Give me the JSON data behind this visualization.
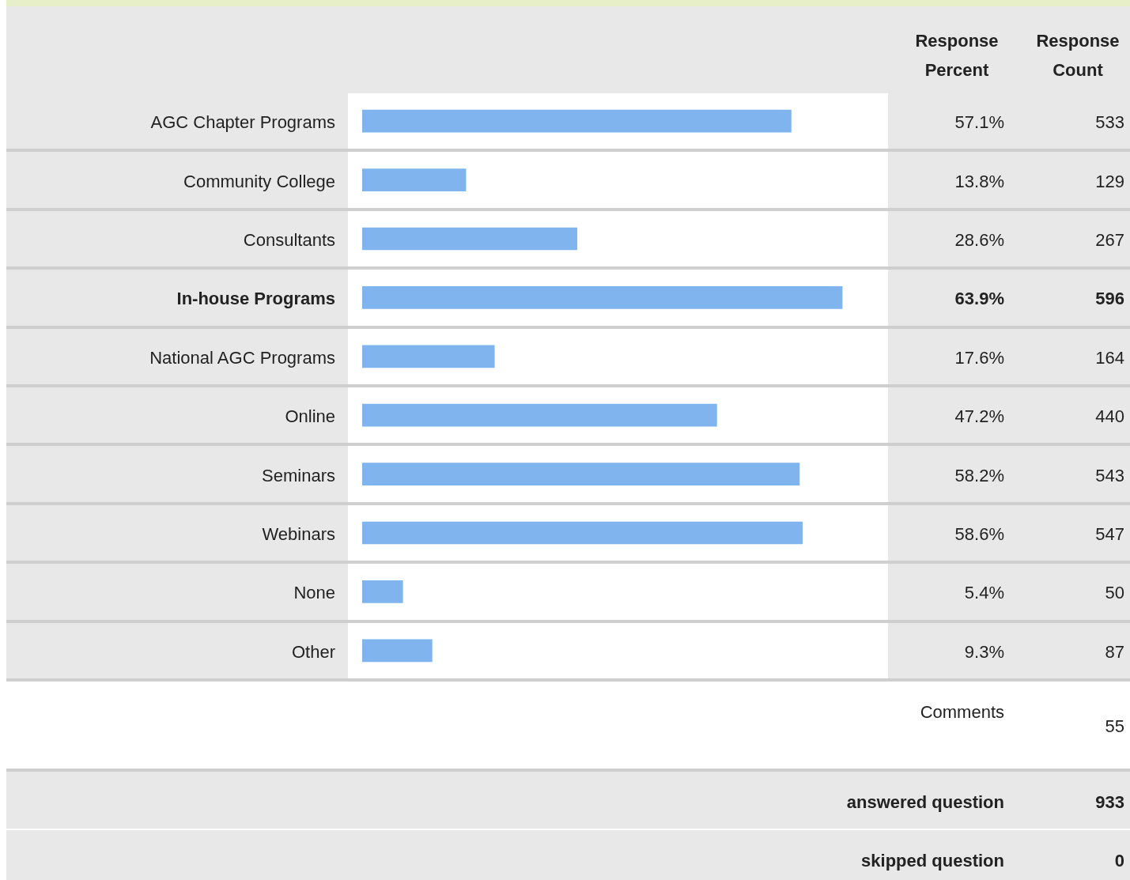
{
  "chart_data": {
    "type": "bar",
    "orientation": "horizontal",
    "categories": [
      "AGC Chapter Programs",
      "Community College",
      "Consultants",
      "In-house Programs",
      "National AGC Programs",
      "Online",
      "Seminars",
      "Webinars",
      "None",
      "Other"
    ],
    "values": [
      57.1,
      13.8,
      28.6,
      63.9,
      17.6,
      47.2,
      58.2,
      58.6,
      5.4,
      9.3
    ],
    "value_labels": [
      "57.1%",
      "13.8%",
      "28.6%",
      "63.9%",
      "17.6%",
      "47.2%",
      "58.2%",
      "58.6%",
      "5.4%",
      "9.3%"
    ],
    "color": "#7fb4ee",
    "tick_labels": "y",
    "legend": false,
    "annotations": [
      "533",
      "129",
      "267",
      "596",
      "164",
      "440",
      "543",
      "547",
      "50",
      "87",
      "Response Percent",
      "Response Count",
      "Comments",
      "55",
      "answered question",
      "933",
      "skipped question",
      "0"
    ]
  }
}
